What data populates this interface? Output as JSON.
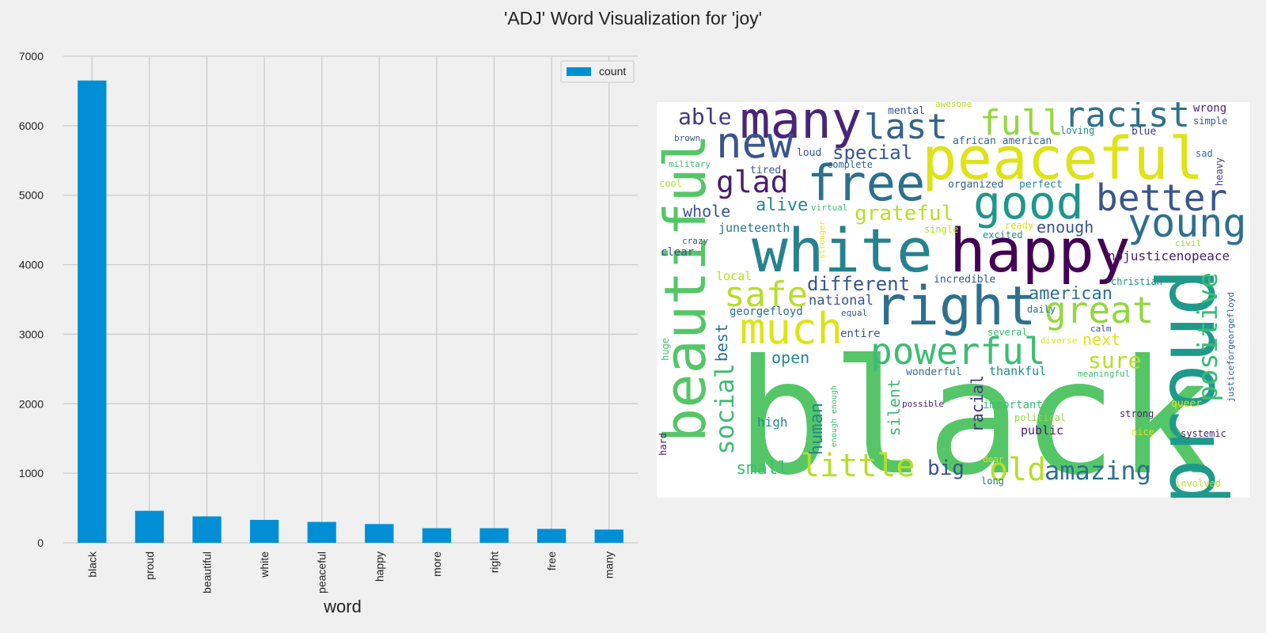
{
  "title": "'ADJ' Word Visualization for 'joy'",
  "chart_data": [
    {
      "type": "bar",
      "categories": [
        "black",
        "proud",
        "beautiful",
        "white",
        "peaceful",
        "happy",
        "more",
        "right",
        "free",
        "many"
      ],
      "series": [
        {
          "name": "count",
          "values": [
            6650,
            460,
            380,
            330,
            300,
            270,
            210,
            210,
            200,
            190
          ],
          "color": "#008fd5"
        }
      ],
      "xlabel": "word",
      "ylabel": "",
      "ylim": [
        0,
        7000
      ],
      "yticks": [
        0,
        1000,
        2000,
        3000,
        4000,
        5000,
        6000,
        7000
      ],
      "grid": true,
      "legend": "top-right"
    },
    {
      "type": "wordcloud",
      "words": [
        "black",
        "proud",
        "beautiful",
        "white",
        "happy",
        "peaceful",
        "right",
        "many",
        "free",
        "new",
        "good",
        "much",
        "young",
        "better",
        "powerful",
        "racist",
        "great",
        "safe",
        "last",
        "full",
        "little",
        "positive",
        "old",
        "social",
        "glad",
        "amazing",
        "different",
        "grateful",
        "sure",
        "able",
        "special",
        "alive",
        "whole",
        "big",
        "american",
        "enough",
        "next",
        "national",
        "open",
        "small",
        "nojusticenopeace",
        "human",
        "racial",
        "silent",
        "best",
        "juneteenth",
        "local",
        "thankful",
        "incredible",
        "georgefloyd",
        "justiceforgeorgefloyd",
        "important",
        "public",
        "clear",
        "high",
        "mental",
        "wrong",
        "african american",
        "loving",
        "blue",
        "simple",
        "heavy",
        "sad",
        "tired",
        "loud",
        "complete",
        "organized",
        "perfect",
        "military",
        "cool",
        "brown",
        "awesome",
        "virtual",
        "ready",
        "single",
        "excited",
        "civil",
        "crazy",
        "stronger",
        "christian",
        "equal",
        "entire",
        "daily",
        "several",
        "calm",
        "diverse",
        "huge",
        "wonderful",
        "meaningful",
        "enough enough",
        "possible",
        "political",
        "queer",
        "strong",
        "systemic",
        "nice",
        "hard",
        "dear",
        "long",
        "involved"
      ]
    }
  ]
}
